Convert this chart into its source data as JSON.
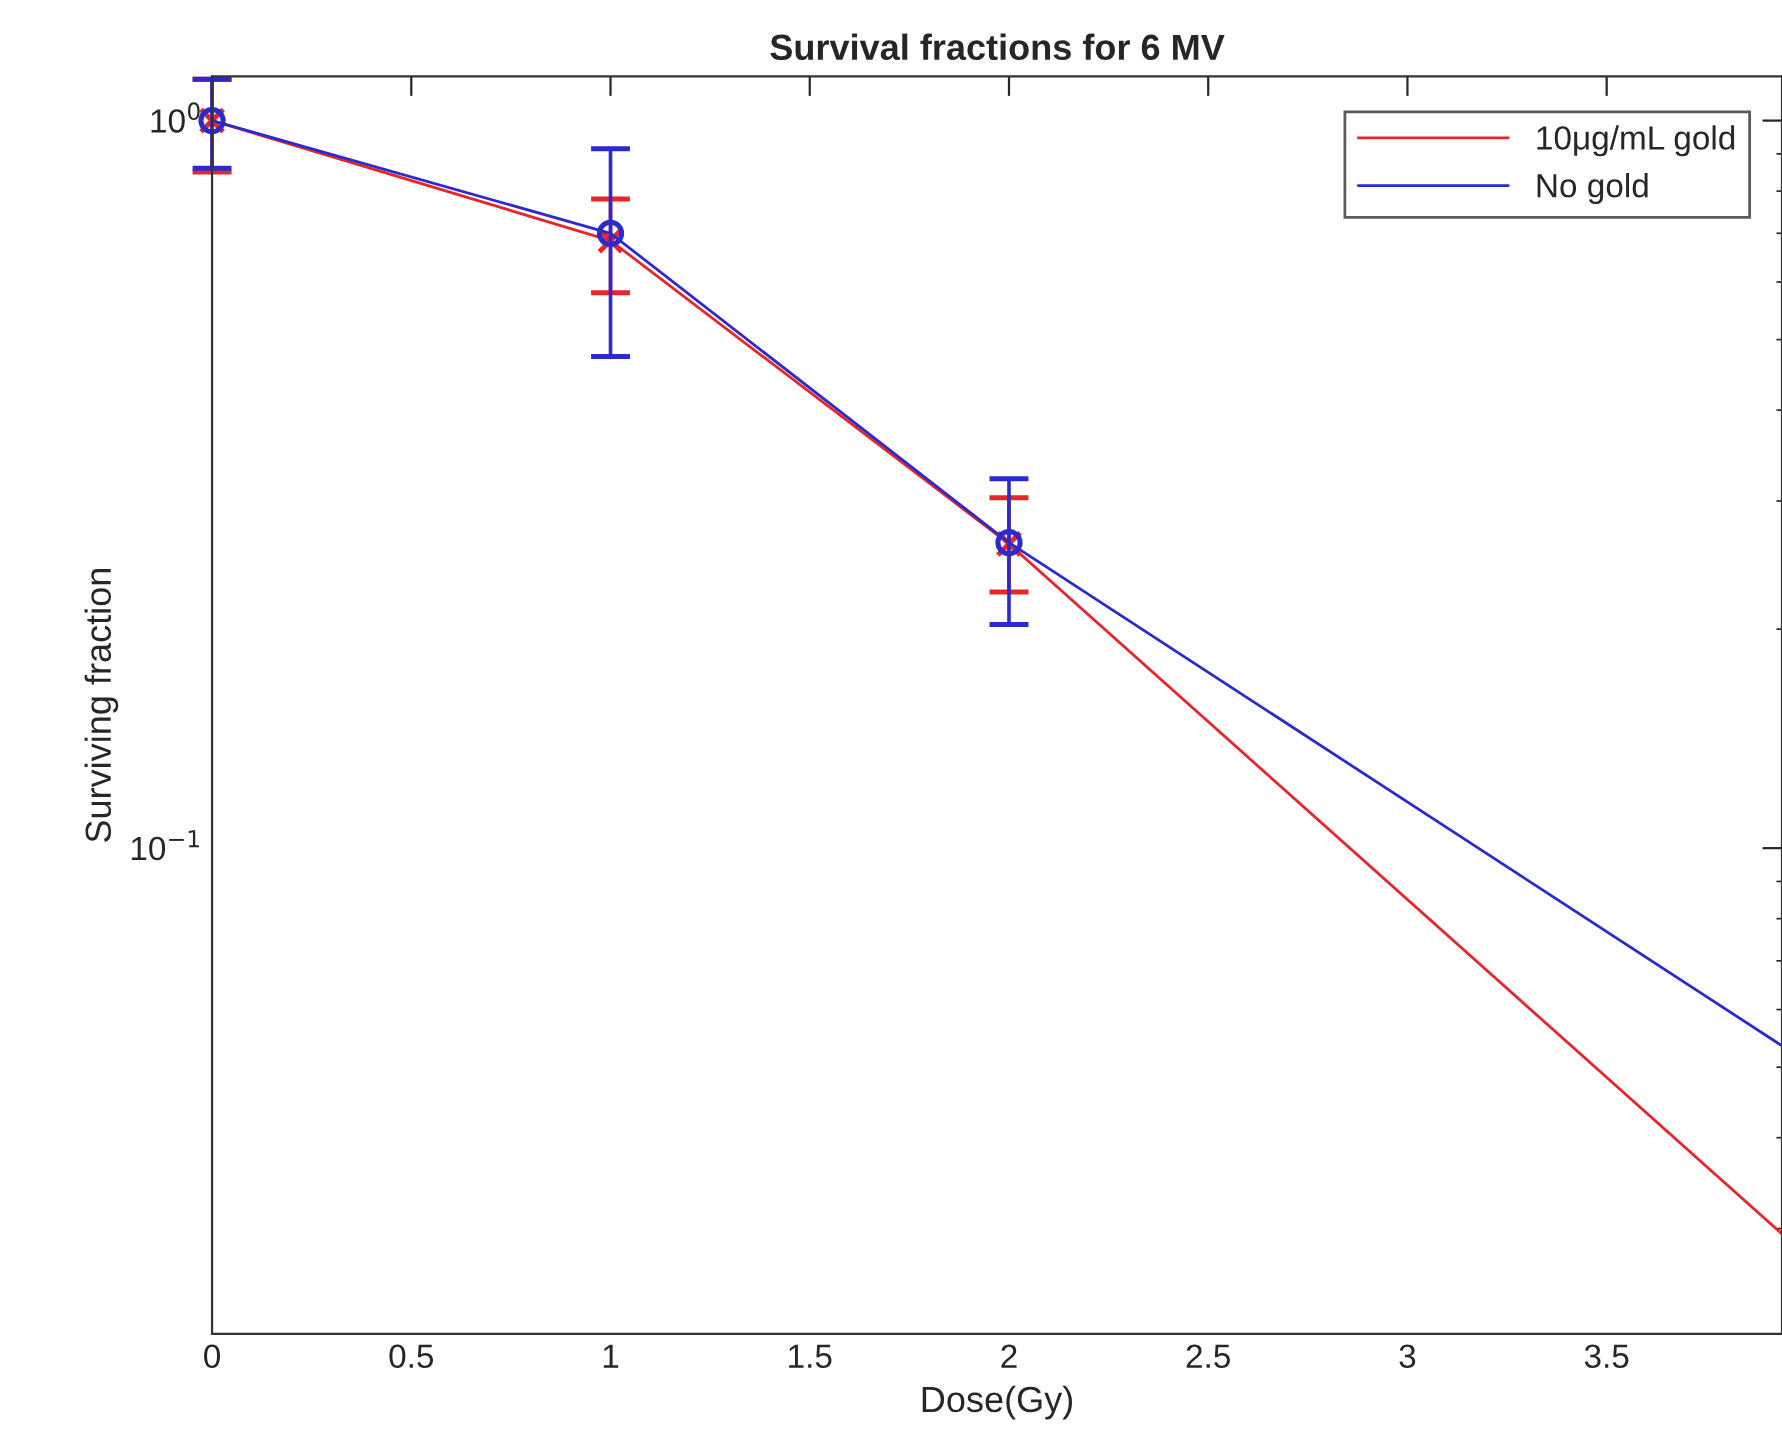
{
  "chart_data": {
    "type": "line",
    "title": "Survival fractions for 6 MV",
    "xlabel": "Dose(Gy)",
    "ylabel": "Surviving fraction",
    "x": [
      0,
      1,
      2,
      3.94
    ],
    "series": [
      {
        "name": "10μg/mL gold",
        "color": "#e8262a",
        "marker": "cross",
        "values": [
          1.0,
          0.684,
          0.262,
          0.0295
        ],
        "errors": [
          [
            0.85,
            1.14
          ],
          [
            0.58,
            0.78
          ],
          [
            0.225,
            0.303
          ],
          null
        ]
      },
      {
        "name": "No gold",
        "color": "#2a2ad0",
        "marker": "circle",
        "values": [
          1.0,
          0.7,
          0.263,
          0.0535
        ],
        "errors": [
          [
            0.86,
            1.14
          ],
          [
            0.474,
            0.915
          ],
          [
            0.203,
            0.322
          ],
          null
        ]
      }
    ],
    "log": "y",
    "xlim": [
      0,
      3.94
    ],
    "ylim": [
      0.0215,
      1.15
    ],
    "xticks": [
      0,
      0.5,
      1,
      1.5,
      2,
      2.5,
      3,
      3.5
    ],
    "yticks": [
      {
        "value": 0.1,
        "label": "10$^{−1}$"
      },
      {
        "value": 1,
        "label": "10$^{0}$"
      }
    ],
    "grid": false,
    "legend": "top right",
    "line_style": "solid"
  }
}
